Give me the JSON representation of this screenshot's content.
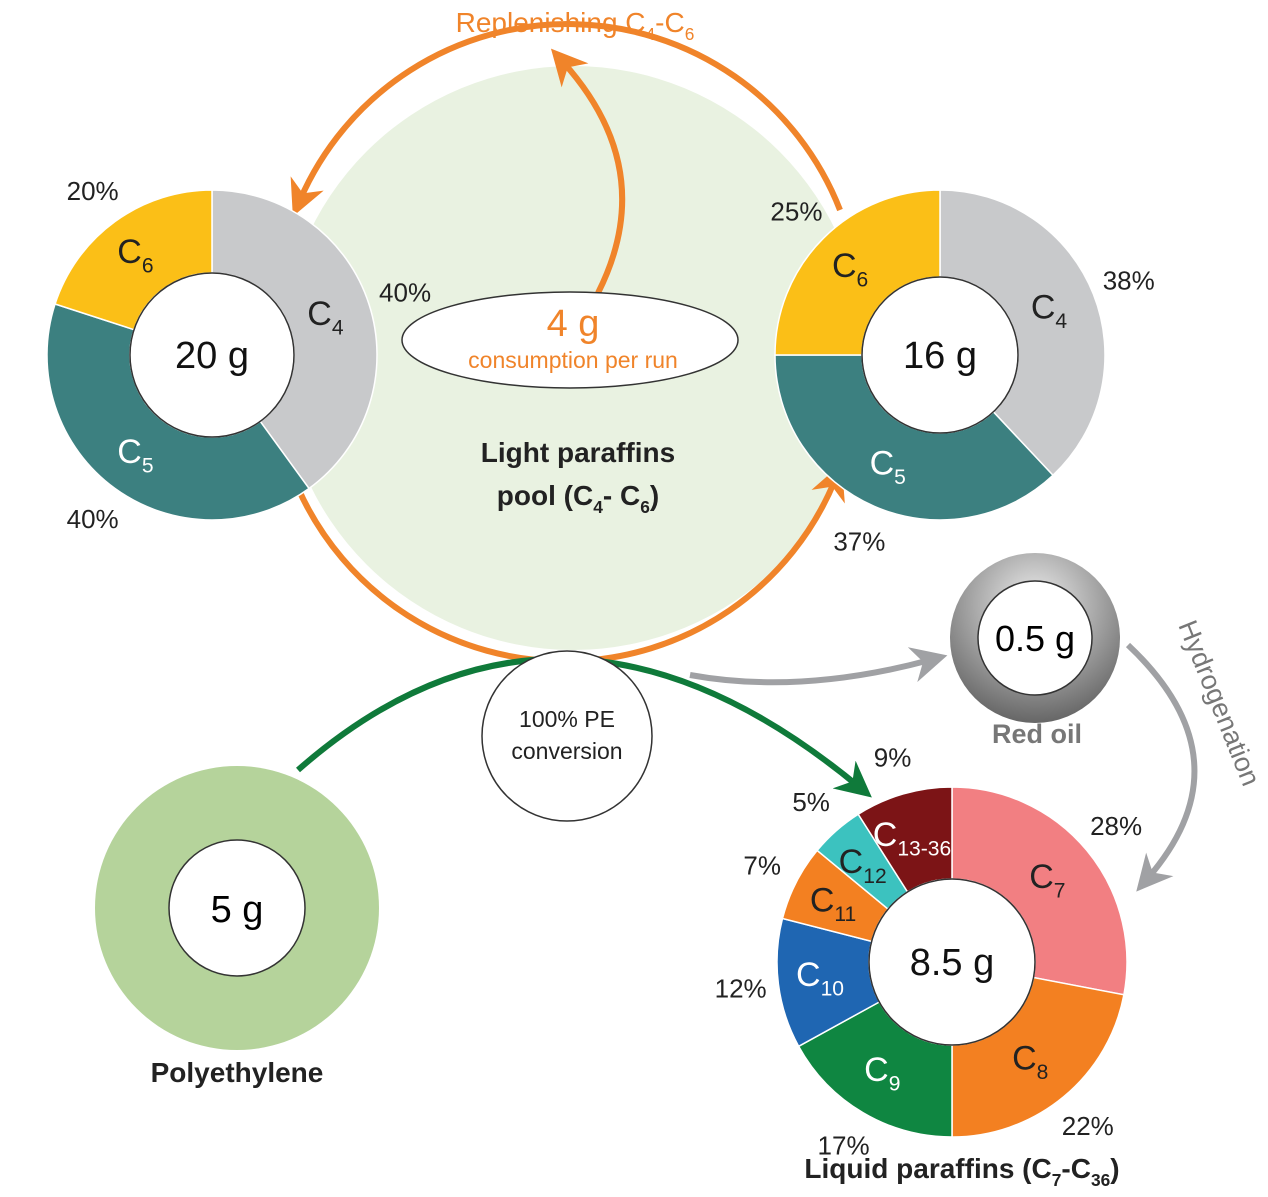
{
  "replenish": [
    "Replenishing C",
    "4",
    "-C",
    "6"
  ],
  "consumption": {
    "amount": "4 g",
    "label": "consumption per run"
  },
  "pool": {
    "line1": "Light paraffins",
    "line2": [
      "pool (C",
      "4",
      "- C",
      "6",
      ")"
    ]
  },
  "donuts": [
    {
      "center": "20 g",
      "segments": [
        {
          "name": "C",
          "sub": "4",
          "value": 40,
          "value_label": "40%",
          "color": "#c8c9cb",
          "label_color": "#222"
        },
        {
          "name": "C",
          "sub": "5",
          "value": 40,
          "value_label": "40%",
          "color": "#3c8080",
          "label_color": "#fff"
        },
        {
          "name": "C",
          "sub": "6",
          "value": 20,
          "value_label": "20%",
          "color": "#fbbf17",
          "label_color": "#222"
        }
      ]
    },
    {
      "center": "16 g",
      "segments": [
        {
          "name": "C",
          "sub": "4",
          "value": 38,
          "value_label": "38%",
          "color": "#c8c9cb",
          "label_color": "#222"
        },
        {
          "name": "C",
          "sub": "5",
          "value": 37,
          "value_label": "37%",
          "color": "#3c8080",
          "label_color": "#fff"
        },
        {
          "name": "C",
          "sub": "6",
          "value": 25,
          "value_label": "25%",
          "color": "#fbbf17",
          "label_color": "#222"
        }
      ]
    },
    {
      "center": "8.5 g",
      "segments": [
        {
          "name": "C",
          "sub": "7",
          "value": 28,
          "value_label": "28%",
          "color": "#f27f82",
          "label_color": "#222"
        },
        {
          "name": "C",
          "sub": "8",
          "value": 22,
          "value_label": "22%",
          "color": "#f38021",
          "label_color": "#222"
        },
        {
          "name": "C",
          "sub": "9",
          "value": 17,
          "value_label": "17%",
          "color": "#0f8641",
          "label_color": "#fff"
        },
        {
          "name": "C",
          "sub": "10",
          "value": 12,
          "value_label": "12%",
          "color": "#1f66b2",
          "label_color": "#fff"
        },
        {
          "name": "C",
          "sub": "11",
          "value": 7,
          "value_label": "7%",
          "color": "#f38021",
          "label_color": "#222"
        },
        {
          "name": "C",
          "sub": "12",
          "value": 5,
          "value_label": "5%",
          "color": "#3cc2bf",
          "label_color": "#222"
        },
        {
          "name": "C",
          "sub": "13-36",
          "value": 9,
          "value_label": "9%",
          "color": "#7c1416",
          "label_color": "#fff"
        }
      ]
    }
  ],
  "conversion": [
    "100% PE",
    "conversion"
  ],
  "polyethylene": {
    "amount": "5 g",
    "label": "Polyethylene"
  },
  "red_oil": {
    "amount": "0.5 g",
    "label": "Red oil"
  },
  "hydrogenation": "Hydrogenation",
  "liquid_label": [
    "Liquid paraffins (C",
    "7",
    "-C",
    "36",
    ")"
  ]
}
